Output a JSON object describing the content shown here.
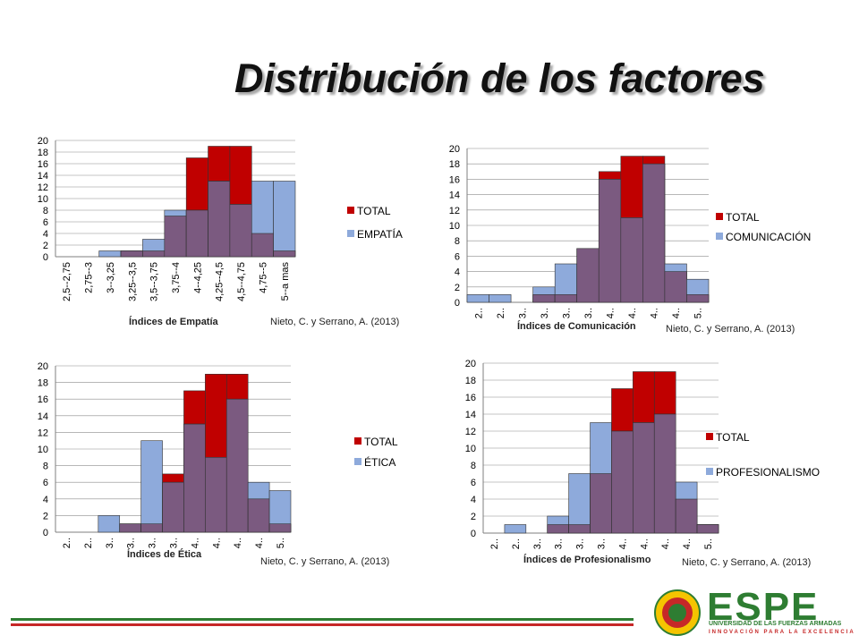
{
  "slide": {
    "title": "Distribución de los factores"
  },
  "colors": {
    "total": "#c00000",
    "factor": "#8eaadb",
    "overlap": "#7b5a80",
    "line_green": "#2e7d32",
    "line_red": "#c62828"
  },
  "chart_data": [
    {
      "type": "bar",
      "categories": [
        "2,5--2,75",
        "2,75--3",
        "3--3,25",
        "3,25--3,5",
        "3,5--3,75",
        "3,75--4",
        "4--4,25",
        "4,25--4,5",
        "4,5--4,75",
        "4,75--5",
        "5--a mas"
      ],
      "series": [
        {
          "name": "TOTAL",
          "values": [
            0,
            0,
            0,
            1,
            1,
            7,
            17,
            19,
            19,
            4,
            1
          ]
        },
        {
          "name": "EMPATÍA",
          "values": [
            0,
            0,
            1,
            1,
            3,
            8,
            8,
            13,
            9,
            13,
            13
          ]
        }
      ],
      "ylim": [
        0,
        20
      ],
      "yticks": [
        0,
        2,
        4,
        6,
        8,
        10,
        12,
        14,
        16,
        18,
        20
      ],
      "xlabel": "Índices de Empatía",
      "source": "Nieto, C. y Serrano, A. (2013)"
    },
    {
      "type": "bar",
      "categories": [
        "2..",
        "2..",
        "3..",
        "3..",
        "3..",
        "3..",
        "4..",
        "4..",
        "4..",
        "4..",
        "5.."
      ],
      "series": [
        {
          "name": "TOTAL",
          "values": [
            0,
            0,
            0,
            1,
            1,
            7,
            17,
            19,
            19,
            4,
            1
          ]
        },
        {
          "name": "COMUNICACIÓN",
          "values": [
            1,
            1,
            0,
            2,
            5,
            7,
            16,
            11,
            18,
            5,
            3
          ]
        }
      ],
      "ylim": [
        0,
        20
      ],
      "yticks": [
        0,
        2,
        4,
        6,
        8,
        10,
        12,
        14,
        16,
        18,
        20
      ],
      "xlabel": "Índices de Comunicación",
      "source": "Nieto, C. y Serrano, A. (2013)"
    },
    {
      "type": "bar",
      "categories": [
        "2..",
        "2..",
        "3..",
        "3..",
        "3..",
        "3..",
        "4..",
        "4..",
        "4..",
        "4..",
        "5.."
      ],
      "series": [
        {
          "name": "TOTAL",
          "values": [
            0,
            0,
            0,
            1,
            1,
            7,
            17,
            19,
            19,
            4,
            1
          ]
        },
        {
          "name": "ÉTICA",
          "values": [
            0,
            0,
            2,
            1,
            11,
            6,
            13,
            9,
            16,
            6,
            5
          ]
        }
      ],
      "ylim": [
        0,
        20
      ],
      "yticks": [
        0,
        2,
        4,
        6,
        8,
        10,
        12,
        14,
        16,
        18,
        20
      ],
      "xlabel": "Índices de Ética",
      "source": "Nieto, C. y Serrano, A. (2013)"
    },
    {
      "type": "bar",
      "categories": [
        "2..",
        "2..",
        "3..",
        "3..",
        "3..",
        "3..",
        "4..",
        "4..",
        "4..",
        "4..",
        "5.."
      ],
      "series": [
        {
          "name": "TOTAL",
          "values": [
            0,
            0,
            0,
            1,
            1,
            7,
            17,
            19,
            19,
            4,
            1
          ]
        },
        {
          "name": "PROFESIONALISMO",
          "values": [
            0,
            1,
            0,
            2,
            7,
            13,
            12,
            13,
            14,
            6,
            1
          ]
        }
      ],
      "ylim": [
        0,
        20
      ],
      "yticks": [
        0,
        2,
        4,
        6,
        8,
        10,
        12,
        14,
        16,
        18,
        20
      ],
      "xlabel": "Índices de Profesionalismo",
      "source": "Nieto, C. y Serrano, A. (2013)"
    }
  ],
  "logo": {
    "name": "ESPE",
    "subtitle": "UNIVERSIDAD DE LAS FUERZAS ARMADAS",
    "tagline": "INNOVACIÓN PARA LA EXCELENCIA"
  }
}
